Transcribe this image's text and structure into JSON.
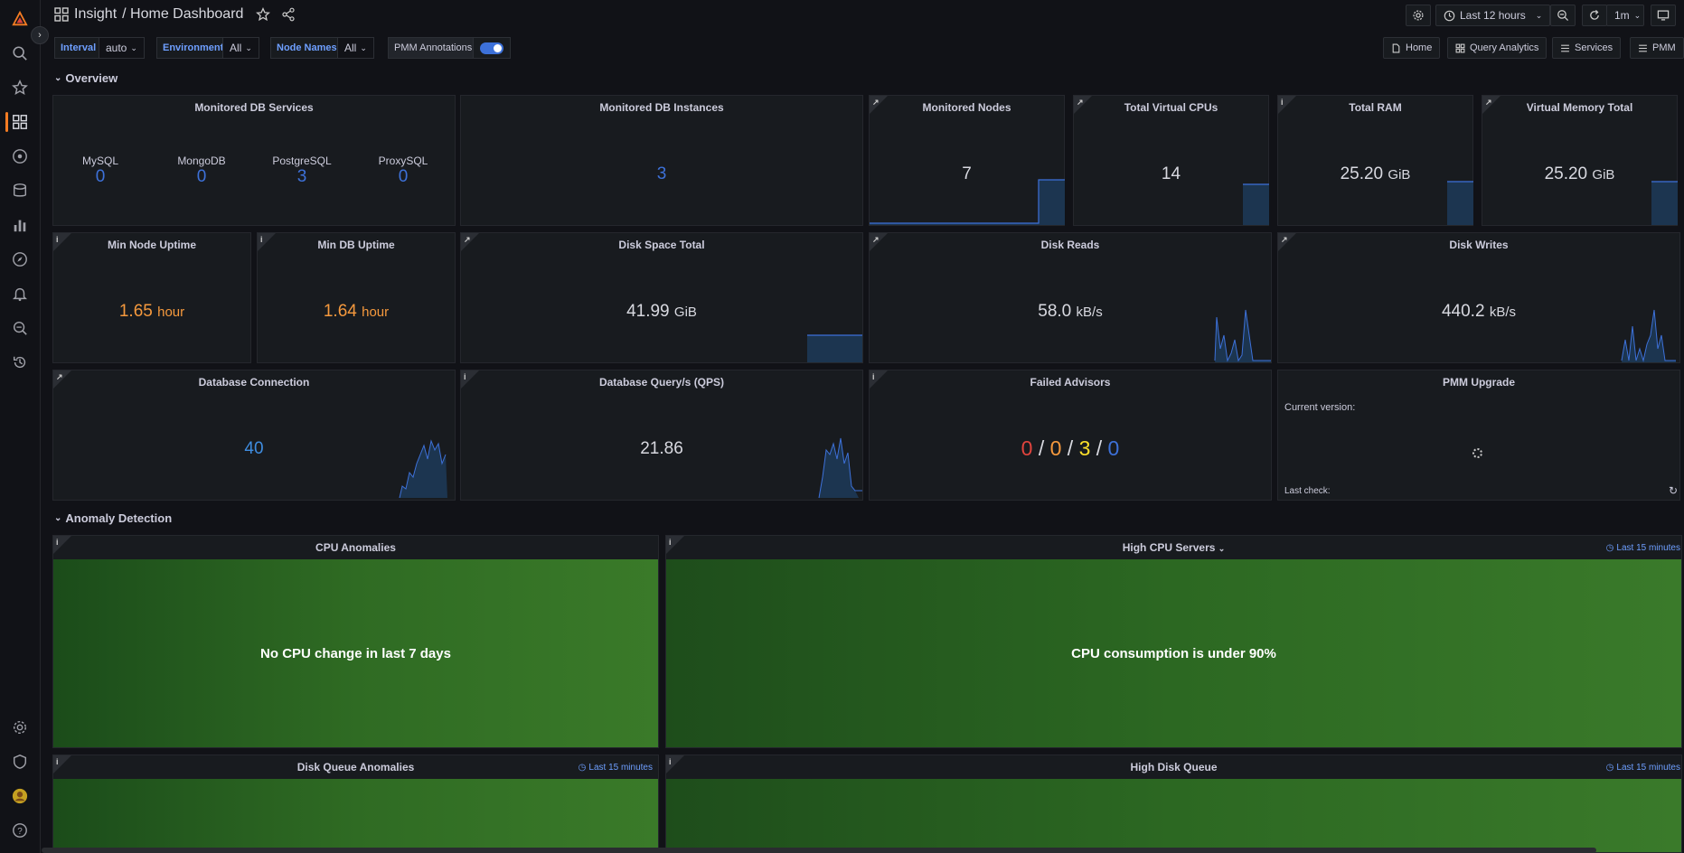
{
  "header": {
    "breadcrumb_root": "Insight",
    "breadcrumb_page": "/ Home Dashboard",
    "time_range": "Last 12 hours",
    "refresh_interval": "1m"
  },
  "variables": [
    {
      "label": "Interval",
      "value": "auto"
    },
    {
      "label": "Environment",
      "value": "All"
    },
    {
      "label": "Node Names",
      "value": "All"
    }
  ],
  "annotations_toggle": {
    "label": "PMM Annotations",
    "enabled": true
  },
  "links": {
    "home": "Home",
    "query_analytics": "Query Analytics",
    "services": "Services",
    "pmm": "PMM"
  },
  "rows": {
    "overview": "Overview",
    "anomaly": "Anomaly Detection"
  },
  "panels": {
    "db_services": {
      "title": "Monitored DB Services",
      "items": [
        {
          "label": "MySQL",
          "value": "0"
        },
        {
          "label": "MongoDB",
          "value": "0"
        },
        {
          "label": "PostgreSQL",
          "value": "3"
        },
        {
          "label": "ProxySQL",
          "value": "0"
        }
      ]
    },
    "db_instances": {
      "title": "Monitored DB Instances",
      "value": "3"
    },
    "nodes": {
      "title": "Monitored Nodes",
      "value": "7"
    },
    "vcpus": {
      "title": "Total Virtual CPUs",
      "value": "14"
    },
    "ram": {
      "title": "Total RAM",
      "value": "25.20",
      "unit": "GiB"
    },
    "vmem": {
      "title": "Virtual Memory Total",
      "value": "25.20",
      "unit": "GiB"
    },
    "node_uptime": {
      "title": "Min Node Uptime",
      "value": "1.65",
      "unit": "hour"
    },
    "db_uptime": {
      "title": "Min DB Uptime",
      "value": "1.64",
      "unit": "hour"
    },
    "disk_total": {
      "title": "Disk Space Total",
      "value": "41.99",
      "unit": "GiB"
    },
    "disk_reads": {
      "title": "Disk Reads",
      "value": "58.0",
      "unit": "kB/s"
    },
    "disk_writes": {
      "title": "Disk Writes",
      "value": "440.2",
      "unit": "kB/s"
    },
    "db_conn": {
      "title": "Database Connection",
      "value": "40"
    },
    "qps": {
      "title": "Database Query/s (QPS)",
      "value": "21.86"
    },
    "advisors": {
      "title": "Failed Advisors",
      "v1": "0",
      "v2": "0",
      "v3": "3",
      "v4": "0",
      "sep": "/"
    },
    "upgrade": {
      "title": "PMM Upgrade",
      "current_version": "Current version:",
      "last_check": "Last check:"
    },
    "cpu_anom": {
      "title": "CPU Anomalies",
      "message": "No CPU change in last 7 days"
    },
    "high_cpu": {
      "title": "High CPU Servers",
      "message": "CPU consumption is under 90%",
      "time": "Last 15 minutes"
    },
    "disk_queue_anom": {
      "title": "Disk Queue Anomalies",
      "time": "Last 15 minutes"
    },
    "high_disk_queue": {
      "title": "High Disk Queue",
      "time": "Last 15 minutes"
    }
  },
  "colors": {
    "accent": "#f57c23",
    "blue_value": "#3d71d9",
    "orange_value": "#f5993d",
    "green_ok": "#2f6b23"
  }
}
